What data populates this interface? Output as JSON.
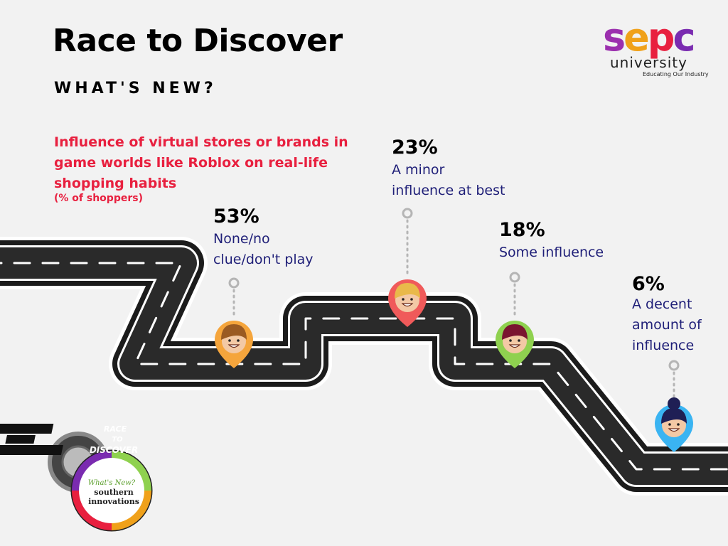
{
  "header": {
    "title": "Race to Discover",
    "subtitle": "WHAT'S NEW?"
  },
  "brand": {
    "logo_word": "sepc",
    "logo_sub": "university",
    "logo_tagline": "Educating Our Industry"
  },
  "badge": {
    "top_text_1": "RACE",
    "top_text_2": "TO",
    "top_text_3": "DISCOVER",
    "script_text": "What's New?",
    "line_1": "southern",
    "line_2": "innovations"
  },
  "chart_data": {
    "type": "bar",
    "title": "Influence of virtual stores or brands in game worlds like Roblox on real-life shopping habits",
    "subtitle": "(% of shoppers)",
    "categories": [
      "None/no clue/don't play",
      "A minor influence at best",
      "Some influence",
      "A decent amount of influence"
    ],
    "values": [
      53,
      23,
      18,
      6
    ],
    "value_labels": [
      "53%",
      "23%",
      "18%",
      "6%"
    ],
    "description_lines": [
      "None/no\nclue/don't play",
      "A minor\ninfluence at best",
      "Some influence",
      "A decent\namount of\ninfluence"
    ],
    "pin_colors": [
      "#f5a53c",
      "#f05a5a",
      "#8fd14f",
      "#3ab4f2"
    ]
  }
}
